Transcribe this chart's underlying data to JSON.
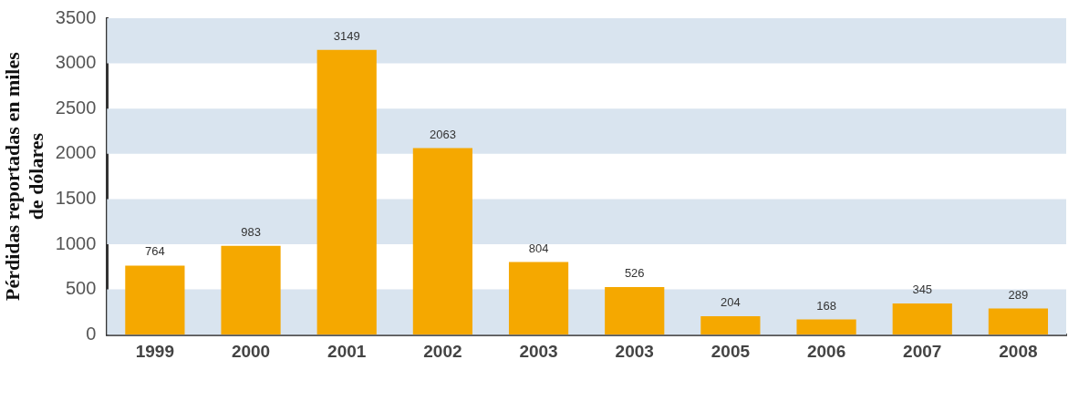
{
  "chart_data": {
    "type": "bar",
    "ylabel": "Pérdidas reportadas en miles de dólares",
    "categories": [
      "1999",
      "2000",
      "2001",
      "2002",
      "2003",
      "2003",
      "2005",
      "2006",
      "2007",
      "2008"
    ],
    "values": [
      764,
      983,
      3149,
      2063,
      804,
      526,
      204,
      168,
      345,
      289
    ],
    "color": "#f5a800",
    "ylim": [
      0,
      3500
    ],
    "yticks": [
      0,
      500,
      1000,
      1500,
      2000,
      2500,
      3000,
      3500
    ],
    "bands": [
      {
        "axis": "y",
        "from": 0,
        "to": 500,
        "color": "#d9e4ef"
      },
      {
        "axis": "y",
        "from": 1000,
        "to": 1500,
        "color": "#d9e4ef"
      },
      {
        "axis": "y",
        "from": 2000,
        "to": 2500,
        "color": "#d9e4ef"
      },
      {
        "axis": "y",
        "from": 3000,
        "to": 3500,
        "color": "#d9e4ef"
      }
    ],
    "data_labels": true
  }
}
